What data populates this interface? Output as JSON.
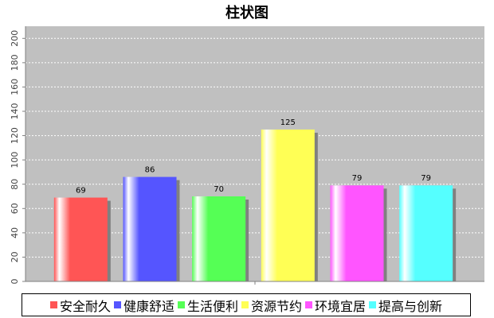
{
  "chart_data": {
    "type": "bar",
    "title": "柱状图",
    "xlabel": "",
    "ylabel": "",
    "ylim": [
      0,
      210
    ],
    "yticks": [
      0,
      20,
      40,
      60,
      80,
      100,
      120,
      140,
      160,
      180,
      200
    ],
    "grid": true,
    "legend_position": "bottom",
    "series": [
      {
        "name": "安全耐久",
        "value": 69,
        "color": "#ff5555"
      },
      {
        "name": "健康舒适",
        "value": 86,
        "color": "#5555ff"
      },
      {
        "name": "生活便利",
        "value": 70,
        "color": "#55ff55"
      },
      {
        "name": "资源节约",
        "value": 125,
        "color": "#ffff55"
      },
      {
        "name": "环境宜居",
        "value": 79,
        "color": "#ff55ff"
      },
      {
        "name": "提高与创新",
        "value": 79,
        "color": "#55ffff"
      }
    ]
  }
}
